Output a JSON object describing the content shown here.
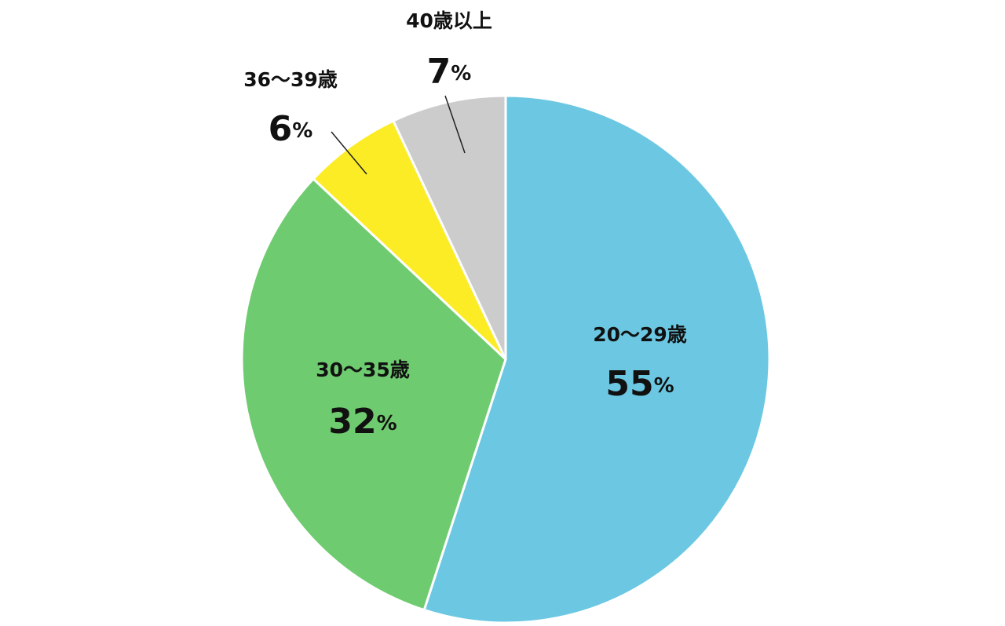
{
  "chart_data": {
    "type": "pie",
    "categories": [
      "20〜29歳",
      "30〜35歳",
      "36〜39歳",
      "40歳以上"
    ],
    "values": [
      55,
      32,
      6,
      7
    ],
    "value_labels": [
      "55%",
      "32%",
      "6%",
      "7%"
    ],
    "colors": [
      "#6cc8e2",
      "#6fcb6f",
      "#fcec26",
      "#cccccc"
    ]
  }
}
